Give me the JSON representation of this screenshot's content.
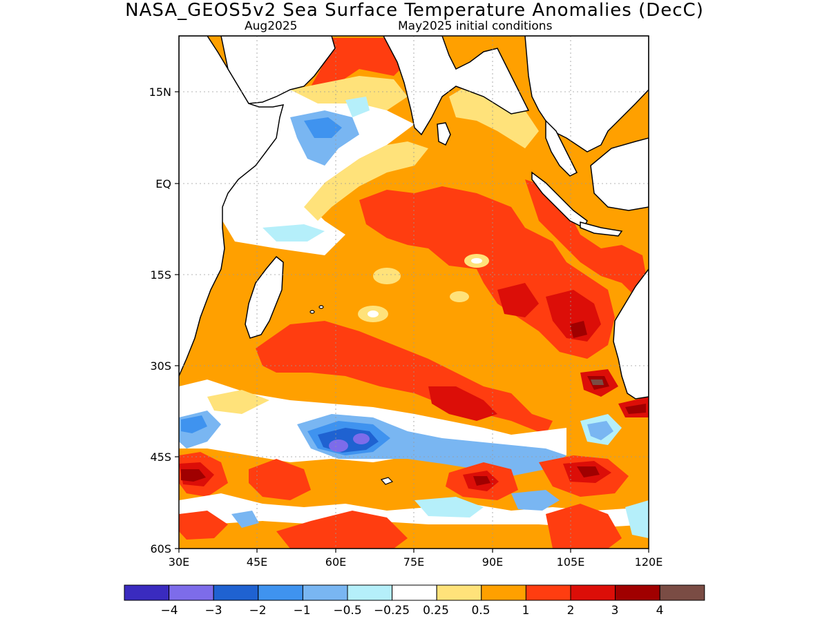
{
  "title": "NASA_GEOS5v2 Sea Surface Temperature Anomalies (DecC)",
  "subtitle_left": "Aug2025",
  "subtitle_right": "May2025 initial conditions",
  "map": {
    "lon_range": [
      30,
      120
    ],
    "lat_range": [
      -60,
      21
    ],
    "lon_ticks": [
      "30E",
      "45E",
      "60E",
      "75E",
      "90E",
      "105E",
      "120E"
    ],
    "lat_ticks": [
      "15N",
      "EQ",
      "15S",
      "30S",
      "45S",
      "60S"
    ],
    "grid": true,
    "region": "Indian Ocean"
  },
  "colorbar": {
    "labels": [
      "−4",
      "−3",
      "−2",
      "−1",
      "−0.5",
      "−0.25",
      "0.25",
      "0.5",
      "1",
      "2",
      "3",
      "4"
    ],
    "colors": [
      "#3a2bbf",
      "#7d6cea",
      "#1f62d1",
      "#3f93ef",
      "#79b6f2",
      "#b5effa",
      "#ffffff",
      "#ffe27a",
      "#ffa000",
      "#ff3d10",
      "#dc0e08",
      "#a00000",
      "#7a4c44"
    ]
  },
  "anomaly_colors": {
    "neg_0_5": "#b5effa",
    "neg_1": "#79b6f2",
    "neg_2": "#3f93ef",
    "neg_3": "#1f62d1",
    "neg_4": "#7d6cea",
    "pos_0_25": "#ffe27a",
    "pos_0_5": "#ffa000",
    "pos_1": "#ff3d10",
    "pos_2": "#dc0e08",
    "pos_3": "#a00000",
    "pos_4": "#7a4c44",
    "land": "#ffffff"
  }
}
